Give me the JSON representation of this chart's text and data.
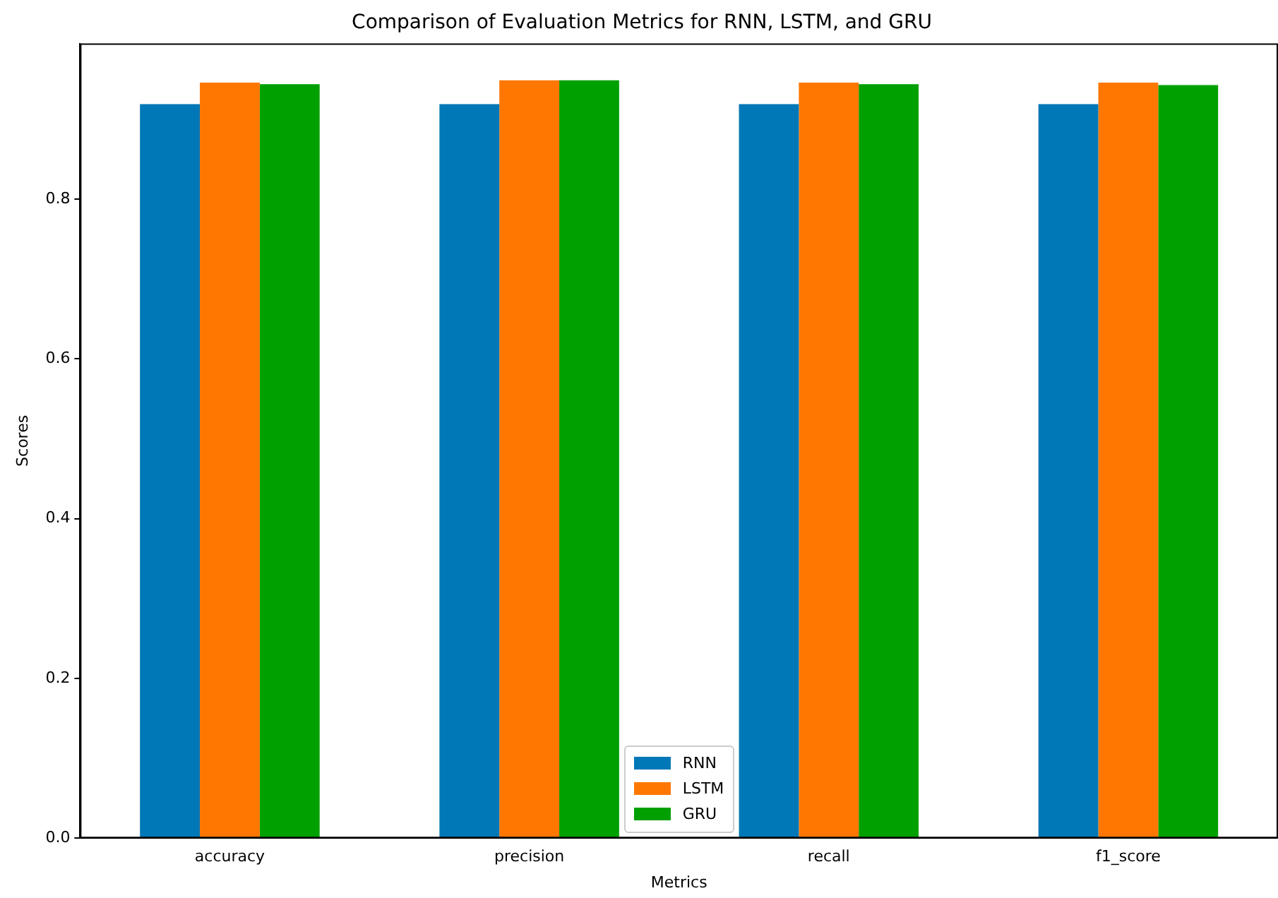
{
  "chart_data": {
    "type": "bar",
    "title": "Comparison of Evaluation Metrics for RNN, LSTM, and GRU",
    "xlabel": "Metrics",
    "ylabel": "Scores",
    "categories": [
      "accuracy",
      "precision",
      "recall",
      "f1_score"
    ],
    "series": [
      {
        "name": "RNN",
        "color": "#0077b6",
        "values": [
          0.919,
          0.919,
          0.919,
          0.919
        ]
      },
      {
        "name": "LSTM",
        "color": "#ff7700",
        "values": [
          0.946,
          0.949,
          0.946,
          0.946
        ]
      },
      {
        "name": "GRU",
        "color": "#00a000",
        "values": [
          0.944,
          0.949,
          0.944,
          0.943
        ]
      }
    ],
    "ylim": [
      0,
      0.995
    ],
    "yticks": [
      {
        "value": 0,
        "label": "0.0"
      },
      {
        "value": 0.2,
        "label": "0.2"
      },
      {
        "value": 0.4,
        "label": "0.4"
      },
      {
        "value": 0.6,
        "label": "0.6"
      },
      {
        "value": 0.8,
        "label": "0.8"
      }
    ],
    "grid": false,
    "legend": "bottom"
  }
}
